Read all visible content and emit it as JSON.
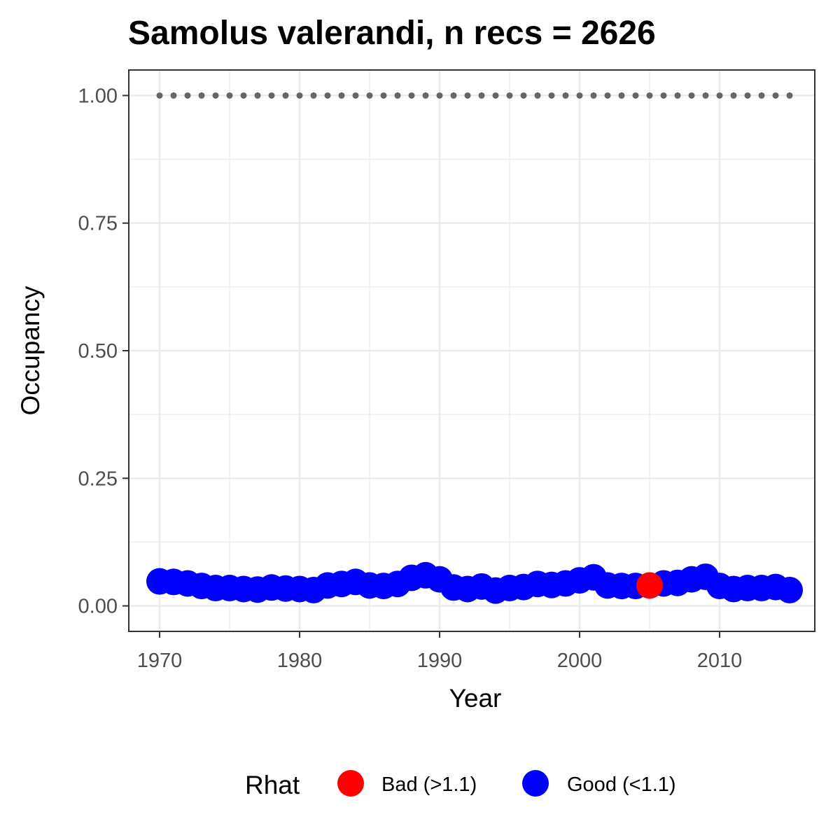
{
  "chart_data": {
    "type": "scatter",
    "title": "Samolus valerandi, n recs = 2626",
    "xlabel": "Year",
    "ylabel": "Occupancy",
    "xlim": [
      1967.8,
      2016.8
    ],
    "ylim": [
      -0.05,
      1.05
    ],
    "xticks": [
      1970,
      1980,
      1990,
      2000,
      2010
    ],
    "xtick_labels": [
      "1970",
      "1980",
      "1990",
      "2000",
      "2010"
    ],
    "yticks": [
      0,
      0.25,
      0.5,
      0.75,
      1
    ],
    "ytick_labels": [
      "0.00",
      "0.25",
      "0.50",
      "0.75",
      "1.00"
    ],
    "grid": true,
    "legend": {
      "title": "Rhat",
      "position": "bottom",
      "entries": [
        {
          "label": "Bad (>1.1)",
          "color": "#ff0000"
        },
        {
          "label": "Good (<1.1)",
          "color": "#0000ff"
        }
      ]
    },
    "reference_line": {
      "y": 1.0,
      "x_from": 1970,
      "x_to": 2015,
      "style": "dotted",
      "color": "#666666"
    },
    "series": [
      {
        "name": "Good (<1.1)",
        "color": "#0000ff",
        "x": [
          1970,
          1971,
          1972,
          1973,
          1974,
          1975,
          1976,
          1977,
          1978,
          1979,
          1980,
          1981,
          1982,
          1983,
          1984,
          1985,
          1986,
          1987,
          1988,
          1989,
          1990,
          1991,
          1992,
          1993,
          1994,
          1995,
          1996,
          1997,
          1998,
          1999,
          2000,
          2001,
          2002,
          2003,
          2004,
          2006,
          2007,
          2008,
          2009,
          2010,
          2011,
          2012,
          2013,
          2014,
          2015
        ],
        "y": [
          0.048,
          0.047,
          0.044,
          0.039,
          0.035,
          0.035,
          0.033,
          0.032,
          0.036,
          0.034,
          0.033,
          0.031,
          0.04,
          0.043,
          0.047,
          0.04,
          0.039,
          0.043,
          0.055,
          0.06,
          0.052,
          0.036,
          0.033,
          0.038,
          0.03,
          0.035,
          0.037,
          0.043,
          0.041,
          0.044,
          0.05,
          0.056,
          0.04,
          0.039,
          0.039,
          0.044,
          0.045,
          0.052,
          0.057,
          0.039,
          0.033,
          0.035,
          0.035,
          0.037,
          0.031
        ]
      },
      {
        "name": "Bad (>1.1)",
        "color": "#ff0000",
        "x": [
          2005
        ],
        "y": [
          0.04
        ]
      }
    ]
  }
}
